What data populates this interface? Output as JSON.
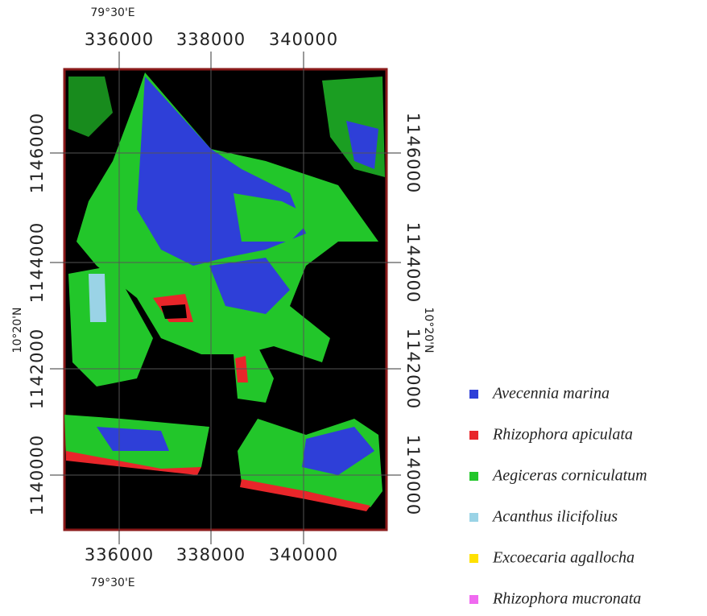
{
  "map": {
    "top_axis": {
      "degree_label": "79°30'E",
      "ticks": [
        "336000",
        "338000",
        "340000"
      ]
    },
    "bottom_axis": {
      "degree_label": "79°30'E",
      "ticks": [
        "336000",
        "338000",
        "340000"
      ]
    },
    "left_axis": {
      "degree_label": "10°20'N",
      "ticks": [
        "1146000",
        "1144000",
        "1142000",
        "1140000"
      ]
    },
    "right_axis": {
      "degree_label": "10°20'N",
      "ticks": [
        "1146000",
        "1144000",
        "1142000",
        "1140000"
      ]
    }
  },
  "legend": {
    "items": [
      {
        "name": "Avecennia marina",
        "color": "#2e3fd8"
      },
      {
        "name": "Rhizophora apiculata",
        "color": "#e8262a"
      },
      {
        "name": "Aegiceras corniculatum",
        "color": "#22c62a"
      },
      {
        "name": "Acanthus ilicifolius",
        "color": "#9ad3e6"
      },
      {
        "name": "Excoecaria agallocha",
        "color": "#ffe100"
      },
      {
        "name": "Rhizophora mucronata",
        "color": "#f06af0"
      }
    ]
  }
}
